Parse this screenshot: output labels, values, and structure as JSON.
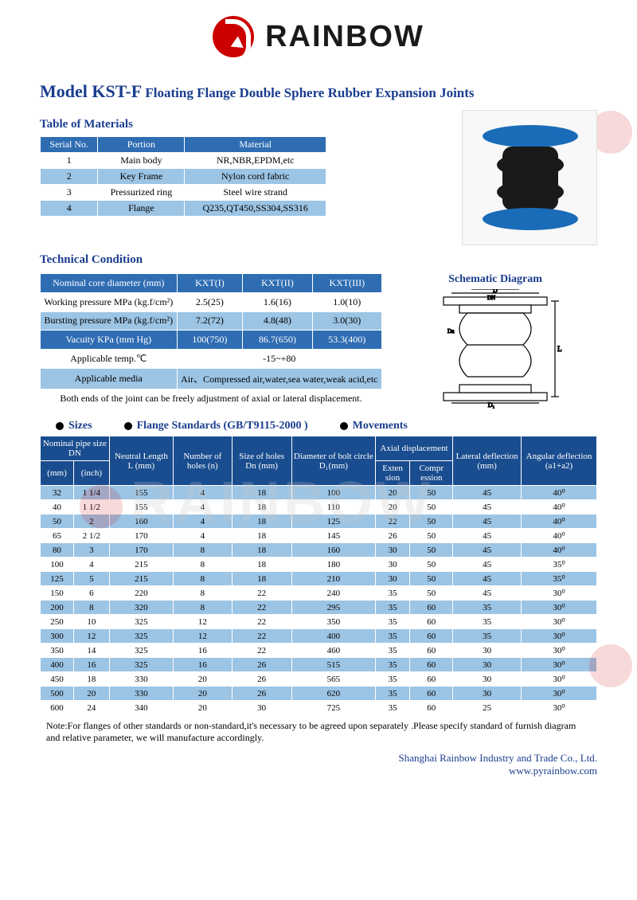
{
  "logo": {
    "text": "RAINBOW"
  },
  "title": {
    "model": "Model KST-F",
    "rest": "Floating Flange Double Sphere Rubber Expansion Joints"
  },
  "materials": {
    "heading": "Table of Materials",
    "headers": [
      "Serial No.",
      "Portion",
      "Material"
    ],
    "rows": [
      [
        "1",
        "Main body",
        "NR,NBR,EPDM,etc"
      ],
      [
        "2",
        "Key Frame",
        "Nylon cord fabric"
      ],
      [
        "3",
        "Pressurized ring",
        "Steel wire strand"
      ],
      [
        "4",
        "Flange",
        "Q235,QT450,SS304,SS316"
      ]
    ]
  },
  "tech": {
    "heading": "Technical Condition",
    "schematic_title": "Schematic Diagram",
    "header": [
      "Nominal core diameter (mm)",
      "KXT(I)",
      "KXT(II)",
      "KXT(III)"
    ],
    "rows": [
      {
        "label": "Working pressure MPa (kg.f/cm²)",
        "vals": [
          "2.5(25)",
          "1.6(16)",
          "1.0(10)"
        ],
        "cls": "row-a"
      },
      {
        "label": "Bursting pressure MPa (kg.f/cm²)",
        "vals": [
          "7.2(72)",
          "4.8(48)",
          "3.0(30)"
        ],
        "cls": "row-b"
      },
      {
        "label": "Vacuity KPa (mm Hg)",
        "vals": [
          "100(750)",
          "86.7(650)",
          "53.3(400)"
        ],
        "cls": "hdr"
      },
      {
        "label": "Applicable temp.℃",
        "span": "-15~+80",
        "cls": "row-a"
      },
      {
        "label": "Applicable media",
        "span": "Air、Compressed air,water,sea water,weak acid,etc",
        "cls": "row-b"
      }
    ],
    "footer": "Both ends of the joint can be freely adjustment of axial or lateral displacement."
  },
  "sizes": {
    "bullets": [
      "Sizes",
      "Flange Standards  (GB/T9115-2000 )",
      "Movements"
    ],
    "header_row1": [
      {
        "t": "Nominal pipe size  DN",
        "cs": 2
      },
      {
        "t": "Neutral Length L (mm)",
        "rs": 2
      },
      {
        "t": "Number of holes (n)",
        "rs": 2
      },
      {
        "t": "Size of holes Dn (mm)",
        "rs": 2
      },
      {
        "t": "Diameter of bolt   circle D₁(mm)",
        "rs": 2
      },
      {
        "t": "Axial displacement",
        "cs": 2
      },
      {
        "t": "Lateral deflection (mm)",
        "rs": 2
      },
      {
        "t": "Angular deflection (a1+a2)",
        "rs": 2
      }
    ],
    "header_row2": [
      "(mm)",
      "(inch)",
      "Exten sion",
      "Compr ession"
    ],
    "rows": [
      [
        "32",
        "1 1/4",
        "155",
        "4",
        "18",
        "100",
        "20",
        "50",
        "45",
        "40⁰"
      ],
      [
        "40",
        "1 1/2",
        "155",
        "4",
        "18",
        "110",
        "20",
        "50",
        "45",
        "40⁰"
      ],
      [
        "50",
        "2",
        "160",
        "4",
        "18",
        "125",
        "22",
        "50",
        "45",
        "40⁰"
      ],
      [
        "65",
        "2 1/2",
        "170",
        "4",
        "18",
        "145",
        "26",
        "50",
        "45",
        "40⁰"
      ],
      [
        "80",
        "3",
        "170",
        "8",
        "18",
        "160",
        "30",
        "50",
        "45",
        "40⁰"
      ],
      [
        "100",
        "4",
        "215",
        "8",
        "18",
        "180",
        "30",
        "50",
        "45",
        "35⁰"
      ],
      [
        "125",
        "5",
        "215",
        "8",
        "18",
        "210",
        "30",
        "50",
        "45",
        "35⁰"
      ],
      [
        "150",
        "6",
        "220",
        "8",
        "22",
        "240",
        "35",
        "50",
        "45",
        "30⁰"
      ],
      [
        "200",
        "8",
        "320",
        "8",
        "22",
        "295",
        "35",
        "60",
        "35",
        "30⁰"
      ],
      [
        "250",
        "10",
        "325",
        "12",
        "22",
        "350",
        "35",
        "60",
        "35",
        "30⁰"
      ],
      [
        "300",
        "12",
        "325",
        "12",
        "22",
        "400",
        "35",
        "60",
        "35",
        "30⁰"
      ],
      [
        "350",
        "14",
        "325",
        "16",
        "22",
        "460",
        "35",
        "60",
        "30",
        "30⁰"
      ],
      [
        "400",
        "16",
        "325",
        "16",
        "26",
        "515",
        "35",
        "60",
        "30",
        "30⁰"
      ],
      [
        "450",
        "18",
        "330",
        "20",
        "26",
        "565",
        "35",
        "60",
        "30",
        "30⁰"
      ],
      [
        "500",
        "20",
        "330",
        "20",
        "26",
        "620",
        "35",
        "60",
        "30",
        "30⁰"
      ],
      [
        "600",
        "24",
        "340",
        "20",
        "30",
        "725",
        "35",
        "60",
        "25",
        "30⁰"
      ]
    ]
  },
  "note": "Note:For flanges of other standards or non-standard,it's necessary to be agreed upon separately .Please specify standard of furnish diagram and relative parameter, we will manufacture accordingly.",
  "footer": {
    "line1": "Shanghai Rainbow Industry and Trade Co., Ltd.",
    "line2": "www.pyrainbow.com"
  },
  "colors": {
    "header_blue": "#2f6db3",
    "dark_blue": "#1a4d8f",
    "light_blue": "#9cc4e4",
    "title_blue": "#1a3d8f"
  }
}
